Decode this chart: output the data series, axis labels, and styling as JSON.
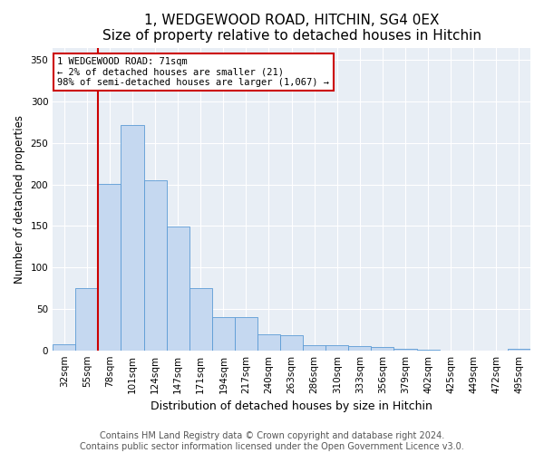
{
  "title": "1, WEDGEWOOD ROAD, HITCHIN, SG4 0EX",
  "subtitle": "Size of property relative to detached houses in Hitchin",
  "xlabel": "Distribution of detached houses by size in Hitchin",
  "ylabel": "Number of detached properties",
  "bar_labels": [
    "32sqm",
    "55sqm",
    "78sqm",
    "101sqm",
    "124sqm",
    "147sqm",
    "171sqm",
    "194sqm",
    "217sqm",
    "240sqm",
    "263sqm",
    "286sqm",
    "310sqm",
    "333sqm",
    "356sqm",
    "379sqm",
    "402sqm",
    "425sqm",
    "449sqm",
    "472sqm",
    "495sqm"
  ],
  "bar_heights": [
    7,
    75,
    201,
    272,
    205,
    149,
    75,
    40,
    40,
    19,
    18,
    6,
    6,
    5,
    4,
    2,
    1,
    0,
    0,
    0,
    2
  ],
  "bar_color": "#c5d8f0",
  "bar_edge_color": "#5b9bd5",
  "annotation_text": "1 WEDGEWOOD ROAD: 71sqm\n← 2% of detached houses are smaller (21)\n98% of semi-detached houses are larger (1,067) →",
  "annotation_box_color": "#ffffff",
  "annotation_box_edge": "#cc0000",
  "vline_color": "#cc0000",
  "vline_x": 1.5,
  "ylim": [
    0,
    365
  ],
  "yticks": [
    0,
    50,
    100,
    150,
    200,
    250,
    300,
    350
  ],
  "background_color": "#e8eef5",
  "footer1": "Contains HM Land Registry data © Crown copyright and database right 2024.",
  "footer2": "Contains public sector information licensed under the Open Government Licence v3.0.",
  "title_fontsize": 11,
  "subtitle_fontsize": 9.5,
  "xlabel_fontsize": 9,
  "ylabel_fontsize": 8.5,
  "tick_fontsize": 7.5,
  "annotation_fontsize": 7.5,
  "footer_fontsize": 7
}
